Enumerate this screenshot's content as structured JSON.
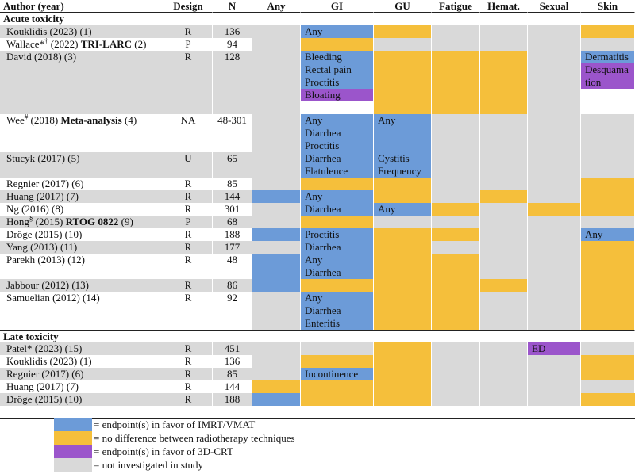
{
  "colors": {
    "blue": "#6c9bd8",
    "orange": "#f5bf3b",
    "purple": "#9b55cb",
    "gray": "#d9d9d9",
    "white": "#ffffff"
  },
  "headers": [
    "Author (year)",
    "Design",
    "N",
    "Any",
    "GI",
    "GU",
    "Fatigue",
    "Hemat.",
    "Sexual",
    "Skin"
  ],
  "sections": [
    "Acute toxicity",
    "Late toxicity"
  ],
  "acute_rows": [
    {
      "author": "Kouklidis (2023) (1)",
      "design": "R",
      "n": "136",
      "any": {
        "c": "gray"
      },
      "gi": {
        "c": "blue",
        "t": [
          "Any"
        ]
      },
      "gu": {
        "c": "orange"
      },
      "fatigue": {
        "c": "gray"
      },
      "hemat": {
        "c": "gray"
      },
      "sexual": {
        "c": "gray"
      },
      "skin": {
        "c": "orange"
      }
    },
    {
      "author_parts": [
        "Wallace*",
        "†",
        " (2022) ",
        "TRI-LARC",
        " (2)"
      ],
      "design": "P",
      "n": "94",
      "any": {
        "c": "gray"
      },
      "gi": {
        "c": "orange"
      },
      "gu": {
        "c": "gray"
      },
      "fatigue": {
        "c": "gray"
      },
      "hemat": {
        "c": "gray"
      },
      "sexual": {
        "c": "gray"
      },
      "skin": {
        "c": "gray"
      }
    },
    {
      "author": "David (2018) (3)",
      "design": "R",
      "n": "128",
      "any": {
        "c": "gray"
      },
      "gi": [
        {
          "c": "blue",
          "t": [
            "Bleeding",
            "Rectal pain",
            "Proctitis"
          ]
        },
        {
          "c": "purple",
          "t": [
            "Bloating"
          ]
        }
      ],
      "gu": {
        "c": "orange"
      },
      "fatigue": {
        "c": "orange"
      },
      "hemat": {
        "c": "orange"
      },
      "sexual": {
        "c": "gray"
      },
      "skin": [
        {
          "c": "blue",
          "t": [
            "Dermatitis"
          ]
        },
        {
          "c": "purple",
          "t": [
            "Desquama",
            "tion"
          ]
        }
      ]
    },
    {
      "author_parts": [
        "Wee",
        "#",
        " (2018) ",
        "Meta-analysis",
        " (4)"
      ],
      "design": "NA",
      "n": "48-301",
      "any": {
        "c": "gray"
      },
      "gi": {
        "c": "blue",
        "t": [
          "Any",
          "Diarrhea",
          "Proctitis"
        ]
      },
      "gu": {
        "c": "blue",
        "t": [
          "Any"
        ]
      },
      "fatigue": {
        "c": "gray"
      },
      "hemat": {
        "c": "gray"
      },
      "sexual": {
        "c": "gray"
      },
      "skin": {
        "c": "gray"
      }
    },
    {
      "author": "Stucyk (2017) (5)",
      "design": "U",
      "n": "65",
      "any": {
        "c": "gray"
      },
      "gi": {
        "c": "blue",
        "t": [
          "Diarrhea",
          "Flatulence"
        ]
      },
      "gu": {
        "c": "blue",
        "t": [
          "Cystitis",
          "Frequency"
        ]
      },
      "fatigue": {
        "c": "gray"
      },
      "hemat": {
        "c": "gray"
      },
      "sexual": {
        "c": "gray"
      },
      "skin": {
        "c": "gray"
      }
    },
    {
      "author": "Regnier (2017) (6)",
      "design": "R",
      "n": "85",
      "any": {
        "c": "gray"
      },
      "gi": {
        "c": "orange"
      },
      "gu": {
        "c": "orange"
      },
      "fatigue": {
        "c": "gray"
      },
      "hemat": {
        "c": "gray"
      },
      "sexual": {
        "c": "gray"
      },
      "skin": {
        "c": "orange"
      }
    },
    {
      "author": "Huang (2017) (7)",
      "design": "R",
      "n": "144",
      "any": {
        "c": "blue"
      },
      "gi": {
        "c": "blue",
        "t": [
          "Any"
        ]
      },
      "gu": {
        "c": "orange"
      },
      "fatigue": {
        "c": "gray"
      },
      "hemat": {
        "c": "orange"
      },
      "sexual": {
        "c": "gray"
      },
      "skin": {
        "c": "orange"
      }
    },
    {
      "author": "Ng (2016) (8)",
      "design": "R",
      "n": "301",
      "any": {
        "c": "gray"
      },
      "gi": {
        "c": "blue",
        "t": [
          "Diarrhea"
        ]
      },
      "gu": {
        "c": "blue",
        "t": [
          "Any"
        ]
      },
      "fatigue": {
        "c": "orange"
      },
      "hemat": {
        "c": "gray"
      },
      "sexual": {
        "c": "orange"
      },
      "skin": {
        "c": "orange"
      }
    },
    {
      "author_parts": [
        "Hong",
        "§",
        " (2015) ",
        "RTOG 0822",
        " (9)"
      ],
      "design": "P",
      "n": "68",
      "any": {
        "c": "gray"
      },
      "gi": {
        "c": "orange"
      },
      "gu": {
        "c": "gray"
      },
      "fatigue": {
        "c": "gray"
      },
      "hemat": {
        "c": "gray"
      },
      "sexual": {
        "c": "gray"
      },
      "skin": {
        "c": "gray"
      }
    },
    {
      "author": "Dröge (2015) (10)",
      "design": "R",
      "n": "188",
      "any": {
        "c": "blue"
      },
      "gi": {
        "c": "blue",
        "t": [
          "Proctitis"
        ]
      },
      "gu": {
        "c": "orange"
      },
      "fatigue": {
        "c": "orange"
      },
      "hemat": {
        "c": "gray"
      },
      "sexual": {
        "c": "gray"
      },
      "skin": {
        "c": "blue",
        "t": [
          "Any"
        ]
      }
    },
    {
      "author": "Yang (2013) (11)",
      "design": "R",
      "n": "177",
      "any": {
        "c": "gray"
      },
      "gi": {
        "c": "blue",
        "t": [
          "Diarrhea"
        ]
      },
      "gu": {
        "c": "orange"
      },
      "fatigue": {
        "c": "gray"
      },
      "hemat": {
        "c": "gray"
      },
      "sexual": {
        "c": "gray"
      },
      "skin": {
        "c": "orange"
      }
    },
    {
      "author": "Parekh (2013) (12)",
      "design": "R",
      "n": "48",
      "any": {
        "c": "blue"
      },
      "gi": {
        "c": "blue",
        "t": [
          "Any",
          "Diarrhea"
        ]
      },
      "gu": {
        "c": "orange"
      },
      "fatigue": {
        "c": "orange"
      },
      "hemat": {
        "c": "gray"
      },
      "sexual": {
        "c": "gray"
      },
      "skin": {
        "c": "orange"
      }
    },
    {
      "author": "Jabbour (2012) (13)",
      "design": "R",
      "n": "86",
      "any": {
        "c": "blue"
      },
      "gi": {
        "c": "orange"
      },
      "gu": {
        "c": "orange"
      },
      "fatigue": {
        "c": "orange"
      },
      "hemat": {
        "c": "orange"
      },
      "sexual": {
        "c": "gray"
      },
      "skin": {
        "c": "orange"
      }
    },
    {
      "author": "Samuelian (2012) (14)",
      "design": "R",
      "n": "92",
      "any": {
        "c": "gray"
      },
      "gi": {
        "c": "blue",
        "t": [
          "Any",
          "Diarrhea",
          "Enteritis"
        ]
      },
      "gu": {
        "c": "orange"
      },
      "fatigue": {
        "c": "orange"
      },
      "hemat": {
        "c": "gray"
      },
      "sexual": {
        "c": "gray"
      },
      "skin": {
        "c": "orange"
      }
    }
  ],
  "late_rows": [
    {
      "author": "Patel* (2023) (15)",
      "design": "R",
      "n": "451",
      "any": {
        "c": "gray"
      },
      "gi": {
        "c": "gray"
      },
      "gu": {
        "c": "orange"
      },
      "fatigue": {
        "c": "gray"
      },
      "hemat": {
        "c": "gray"
      },
      "sexual": {
        "c": "purple",
        "t": [
          "ED"
        ]
      },
      "skin": {
        "c": "gray"
      }
    },
    {
      "author": "Kouklidis (2023) (1)",
      "design": "R",
      "n": "136",
      "any": {
        "c": "gray"
      },
      "gi": {
        "c": "orange"
      },
      "gu": {
        "c": "orange"
      },
      "fatigue": {
        "c": "gray"
      },
      "hemat": {
        "c": "gray"
      },
      "sexual": {
        "c": "gray"
      },
      "skin": {
        "c": "orange"
      }
    },
    {
      "author": "Regnier (2017) (6)",
      "design": "R",
      "n": "85",
      "any": {
        "c": "gray"
      },
      "gi": {
        "c": "blue",
        "t": [
          "Incontinence"
        ]
      },
      "gu": {
        "c": "orange"
      },
      "fatigue": {
        "c": "gray"
      },
      "hemat": {
        "c": "gray"
      },
      "sexual": {
        "c": "gray"
      },
      "skin": {
        "c": "orange"
      }
    },
    {
      "author": "Huang (2017) (7)",
      "design": "R",
      "n": "144",
      "any": {
        "c": "orange"
      },
      "gi": {
        "c": "orange"
      },
      "gu": {
        "c": "orange"
      },
      "fatigue": {
        "c": "gray"
      },
      "hemat": {
        "c": "gray"
      },
      "sexual": {
        "c": "gray"
      },
      "skin": {
        "c": "gray"
      }
    },
    {
      "author": "Dröge (2015) (10)",
      "design": "R",
      "n": "188",
      "any": {
        "c": "blue"
      },
      "gi": {
        "c": "orange"
      },
      "gu": {
        "c": "orange"
      },
      "fatigue": {
        "c": "gray"
      },
      "hemat": {
        "c": "gray"
      },
      "sexual": {
        "c": "gray"
      },
      "skin": {
        "c": "orange"
      }
    }
  ],
  "legend": [
    {
      "color": "blue",
      "label": "= endpoint(s) in favor of IMRT/VMAT"
    },
    {
      "color": "orange",
      "label": "= no difference between radiotherapy techniques"
    },
    {
      "color": "purple",
      "label": "= endpoint(s) in favor of 3D-CRT"
    },
    {
      "color": "gray",
      "label": "= not investigated in study"
    }
  ]
}
